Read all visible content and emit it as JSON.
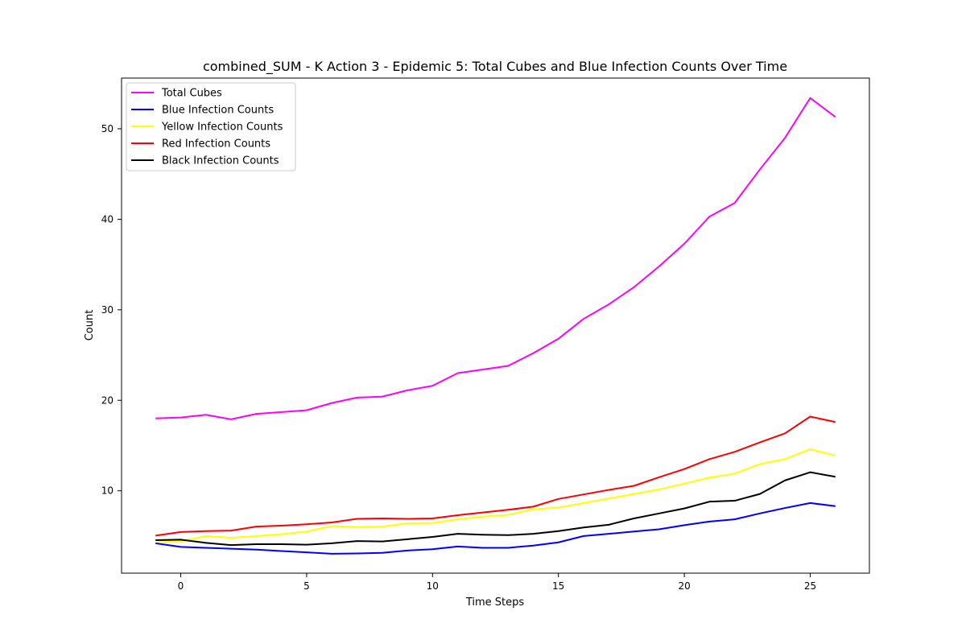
{
  "chart_data": {
    "type": "line",
    "title": "combined_SUM - K Action 3 - Epidemic 5: Total Cubes and Blue Infection Counts Over Time",
    "xlabel": "Time Steps",
    "ylabel": "Count",
    "xlim": [
      -2.35,
      27.35
    ],
    "ylim": [
      0.9,
      55.6
    ],
    "xticks": [
      0,
      5,
      10,
      15,
      20,
      25
    ],
    "yticks": [
      10,
      20,
      30,
      40,
      50
    ],
    "grid": false,
    "legend_position": "top-left",
    "x": [
      -1,
      0,
      1,
      2,
      3,
      4,
      5,
      6,
      7,
      8,
      9,
      10,
      11,
      12,
      13,
      14,
      15,
      16,
      17,
      18,
      19,
      20,
      21,
      22,
      23,
      24,
      25,
      26
    ],
    "series": [
      {
        "name": "Total Cubes",
        "color": "#ff00ff",
        "values": [
          18.0,
          18.1,
          18.4,
          17.9,
          18.5,
          18.7,
          18.9,
          19.7,
          20.3,
          20.4,
          21.1,
          21.6,
          23.0,
          23.4,
          23.8,
          25.2,
          26.8,
          29.0,
          30.6,
          32.5,
          34.8,
          37.3,
          40.3,
          41.8,
          45.5,
          49.0,
          53.4,
          51.3
        ]
      },
      {
        "name": "Blue Infection Counts",
        "color": "#0000ff",
        "values": [
          4.2,
          3.8,
          3.7,
          3.6,
          3.5,
          3.35,
          3.2,
          3.05,
          3.08,
          3.15,
          3.4,
          3.55,
          3.85,
          3.7,
          3.7,
          3.95,
          4.3,
          5.0,
          5.25,
          5.5,
          5.75,
          6.2,
          6.6,
          6.85,
          7.5,
          8.1,
          8.65,
          8.3
        ]
      },
      {
        "name": "Yellow Infection Counts",
        "color": "#ffff00",
        "values": [
          4.5,
          4.4,
          5.0,
          4.8,
          5.0,
          5.2,
          5.5,
          6.1,
          6.0,
          6.05,
          6.4,
          6.45,
          6.85,
          7.15,
          7.35,
          7.95,
          8.15,
          8.65,
          9.15,
          9.65,
          10.15,
          10.8,
          11.45,
          11.9,
          12.95,
          13.5,
          14.6,
          13.9
        ]
      },
      {
        "name": "Red Infection Counts",
        "color": "#ff0000",
        "values": [
          5.05,
          5.45,
          5.55,
          5.6,
          6.05,
          6.15,
          6.3,
          6.5,
          6.9,
          6.95,
          6.9,
          6.95,
          7.3,
          7.6,
          7.9,
          8.25,
          9.1,
          9.6,
          10.1,
          10.55,
          11.5,
          12.4,
          13.5,
          14.3,
          15.35,
          16.35,
          18.2,
          17.6
        ]
      },
      {
        "name": "Black Infection Counts",
        "color": "#000000",
        "values": [
          4.55,
          4.6,
          4.25,
          4.0,
          4.1,
          4.1,
          4.05,
          4.2,
          4.45,
          4.4,
          4.65,
          4.9,
          5.25,
          5.15,
          5.1,
          5.25,
          5.55,
          5.95,
          6.25,
          6.95,
          7.5,
          8.05,
          8.8,
          8.9,
          9.65,
          11.15,
          12.05,
          11.55
        ]
      }
    ]
  }
}
